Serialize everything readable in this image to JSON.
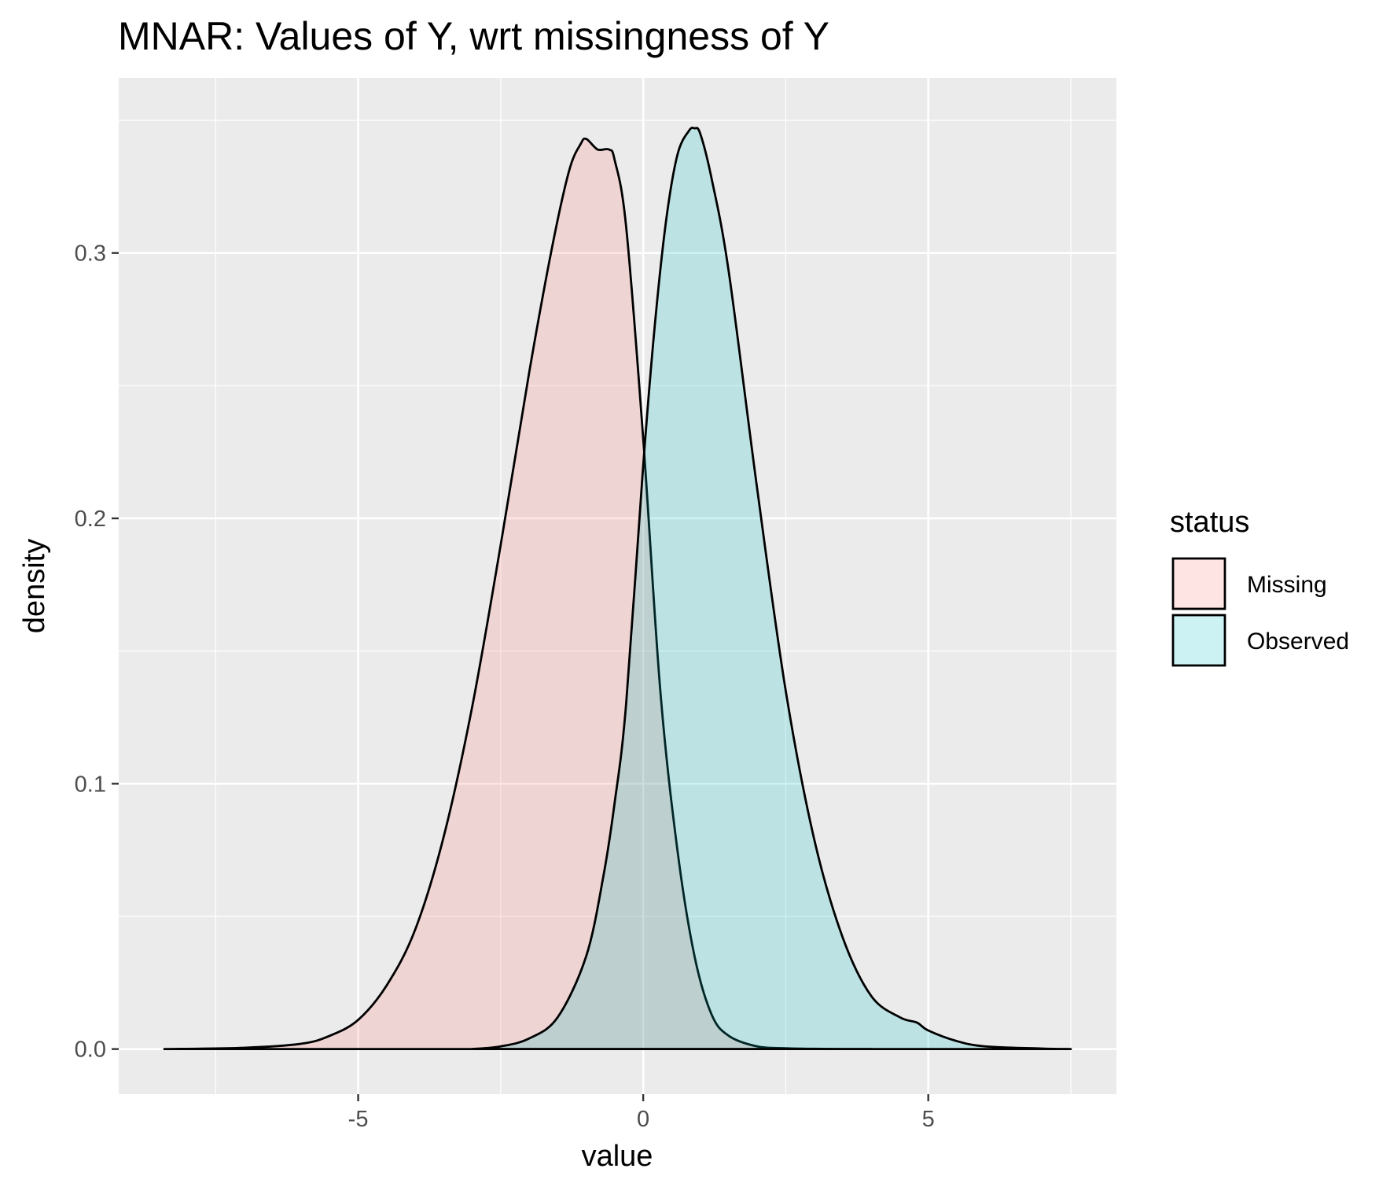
{
  "chart_data": {
    "type": "area",
    "subtype": "density",
    "title": "MNAR: Values of Y, wrt missingness of Y",
    "xlabel": "value",
    "ylabel": "density",
    "xlim": [
      -9.2,
      8.3
    ],
    "ylim": [
      -0.017,
      0.366
    ],
    "x_ticks": [
      -5,
      0,
      5
    ],
    "x_tick_labels": [
      "-5",
      "0",
      "5"
    ],
    "y_ticks": [
      0.0,
      0.1,
      0.2,
      0.3
    ],
    "y_tick_labels": [
      "0.0",
      "0.1",
      "0.2",
      "0.3"
    ],
    "grid": true,
    "legend": {
      "title": "status",
      "position": "right"
    },
    "series": [
      {
        "name": "Missing",
        "color": "#F8766D",
        "x": [
          -8.4,
          -7.0,
          -6.0,
          -5.5,
          -5.0,
          -4.5,
          -4.0,
          -3.5,
          -3.0,
          -2.5,
          -2.0,
          -1.6,
          -1.3,
          -1.1,
          -1.0,
          -0.8,
          -0.6,
          -0.5,
          -0.3,
          0.0,
          0.3,
          0.6,
          0.9,
          1.2,
          1.5,
          2.0,
          2.5,
          3.0,
          3.5,
          4.0
        ],
        "y": [
          0.0,
          0.0005,
          0.002,
          0.005,
          0.011,
          0.024,
          0.045,
          0.08,
          0.129,
          0.19,
          0.255,
          0.302,
          0.331,
          0.341,
          0.343,
          0.339,
          0.339,
          0.335,
          0.31,
          0.23,
          0.135,
          0.075,
          0.035,
          0.013,
          0.005,
          0.001,
          0.0003,
          0.0001,
          0.0,
          0.0
        ]
      },
      {
        "name": "Observed",
        "color": "#00BFC4",
        "x": [
          -3.0,
          -2.5,
          -2.0,
          -1.5,
          -1.0,
          -0.7,
          -0.5,
          -0.3,
          0.0,
          0.2,
          0.4,
          0.6,
          0.8,
          0.9,
          1.0,
          1.2,
          1.5,
          2.0,
          2.5,
          3.0,
          3.5,
          4.0,
          4.5,
          4.8,
          5.0,
          5.5,
          6.0,
          7.0,
          7.5
        ],
        "y": [
          0.0,
          0.001,
          0.004,
          0.012,
          0.035,
          0.065,
          0.093,
          0.13,
          0.22,
          0.272,
          0.312,
          0.337,
          0.346,
          0.347,
          0.345,
          0.328,
          0.293,
          0.211,
          0.135,
          0.079,
          0.042,
          0.02,
          0.012,
          0.01,
          0.007,
          0.003,
          0.001,
          0.0002,
          0.0
        ]
      }
    ]
  }
}
